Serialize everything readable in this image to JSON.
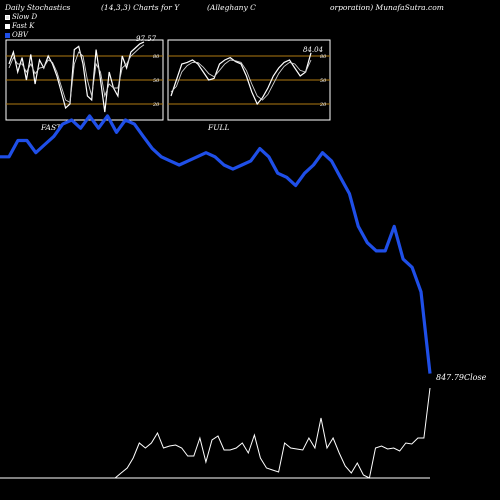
{
  "header": {
    "left": "Daily Stochastics",
    "params": "(14,3,3) Charts for Y",
    "company": "(Alleghany C",
    "site": "orporation) MunafaSutra.com"
  },
  "legend": [
    {
      "label": "Slow D",
      "swatch": "grey"
    },
    {
      "label": "Fast K",
      "swatch": "white"
    },
    {
      "label": "OBV",
      "swatch": "blue"
    }
  ],
  "colors": {
    "obv": "#1f4fe8",
    "background": "#000000",
    "stoch_band": "#b07a12",
    "line": "#ffffff"
  },
  "chart_data": [
    {
      "type": "line",
      "title": "FAST",
      "ylim": [
        0,
        100
      ],
      "ref_levels": [
        20,
        50,
        80
      ],
      "tick_labels": [
        "80",
        "50",
        "20"
      ],
      "last_value_label": "97.57",
      "series": [
        {
          "name": "Fast K",
          "values": [
            70,
            85,
            60,
            78,
            50,
            82,
            45,
            75,
            65,
            80,
            70,
            55,
            35,
            15,
            20,
            88,
            92,
            70,
            30,
            25,
            88,
            50,
            10,
            60,
            40,
            30,
            80,
            65,
            85,
            90,
            95,
            97.57
          ]
        },
        {
          "name": "Slow D",
          "values": [
            65,
            78,
            70,
            70,
            60,
            70,
            58,
            65,
            66,
            75,
            72,
            60,
            42,
            25,
            22,
            70,
            85,
            80,
            50,
            30,
            70,
            60,
            30,
            45,
            40,
            40,
            65,
            70,
            80,
            85,
            90,
            94
          ]
        }
      ]
    },
    {
      "type": "line",
      "title": "FULL",
      "ylim": [
        0,
        100
      ],
      "ref_levels": [
        20,
        50,
        80
      ],
      "tick_labels": [
        "80",
        "50",
        "20"
      ],
      "last_value_label": "84.04",
      "series": [
        {
          "name": "Full K",
          "values": [
            30,
            50,
            70,
            72,
            75,
            70,
            60,
            50,
            52,
            70,
            75,
            78,
            73,
            70,
            55,
            35,
            20,
            28,
            40,
            55,
            65,
            72,
            75,
            65,
            55,
            60,
            84.04
          ]
        },
        {
          "name": "Full D",
          "values": [
            35,
            42,
            60,
            68,
            72,
            72,
            66,
            58,
            54,
            62,
            70,
            75,
            74,
            72,
            62,
            45,
            30,
            25,
            32,
            45,
            58,
            67,
            72,
            70,
            62,
            60,
            75
          ]
        }
      ]
    },
    {
      "type": "line",
      "title": "",
      "name": "OBV",
      "values": [
        285,
        285,
        305,
        305,
        290,
        300,
        310,
        325,
        330,
        320,
        335,
        320,
        335,
        315,
        330,
        325,
        310,
        295,
        285,
        280,
        275,
        280,
        285,
        290,
        285,
        275,
        270,
        275,
        280,
        295,
        285,
        265,
        260,
        250,
        265,
        275,
        290,
        280,
        260,
        240,
        200,
        180,
        170,
        170,
        200,
        160,
        150,
        120,
        20
      ],
      "close_label": "847.79Close"
    },
    {
      "type": "line",
      "title": "",
      "name": "Volume",
      "values": [
        0,
        0,
        0,
        0,
        0,
        0,
        0,
        0,
        0,
        0,
        0,
        0,
        0,
        0,
        0,
        0,
        0,
        0,
        0,
        0,
        5,
        10,
        20,
        35,
        30,
        35,
        45,
        30,
        32,
        33,
        30,
        22,
        22,
        40,
        16,
        38,
        42,
        28,
        28,
        30,
        35,
        25,
        43,
        20,
        10,
        8,
        6,
        35,
        30,
        29,
        28,
        40,
        30,
        60,
        30,
        40,
        25,
        12,
        5,
        15,
        3,
        0,
        30,
        32,
        29,
        30,
        27,
        35,
        34,
        40,
        40,
        90
      ]
    }
  ]
}
